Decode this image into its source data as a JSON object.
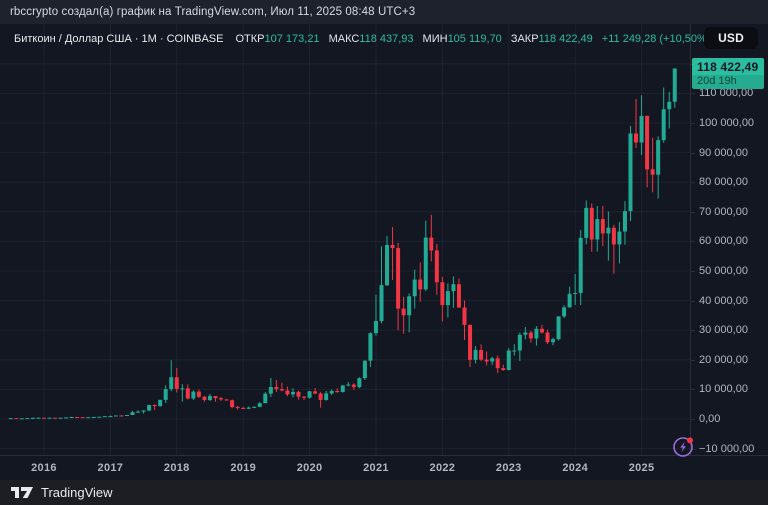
{
  "attribution": "rbccrypto создал(а) график на TradingView.com, Июл 11, 2025 08:48 UTC+3",
  "legend": {
    "title": "Биткоин / Доллар США · 1M · COINBASE",
    "items": [
      {
        "label": "ОТКР",
        "value": "107 173,21"
      },
      {
        "label": "МАКС",
        "value": "118 437,93"
      },
      {
        "label": "МИН",
        "value": "105 119,70"
      },
      {
        "label": "ЗАКР",
        "value": "118 422,49"
      }
    ],
    "change": "+11 249,28 (+10,50%)"
  },
  "currency_button": "USD",
  "price_label": {
    "price": "118 422,49",
    "countdown": "20d 19h",
    "value": 118422.49
  },
  "footer": {
    "brand": "TradingView"
  },
  "colors": {
    "up": "#22ab94",
    "down": "#f23645",
    "background": "#131722",
    "panel": "#1e222d",
    "grid": "rgba(240,243,250,0.055)",
    "label_bg": "#2abda0",
    "accent_text": "#2dbd9e",
    "flash_purple": "#9c6ade",
    "dot_red": "#f23645"
  },
  "axes": {
    "y_ticks": [
      {
        "value": 120000,
        "label": "120 000,00"
      },
      {
        "value": 110000,
        "label": "110 000,00"
      },
      {
        "value": 100000,
        "label": "100 000,00"
      },
      {
        "value": 90000,
        "label": "90 000,00"
      },
      {
        "value": 80000,
        "label": "80 000,00"
      },
      {
        "value": 70000,
        "label": "70 000,00"
      },
      {
        "value": 60000,
        "label": "60 000,00"
      },
      {
        "value": 50000,
        "label": "50 000,00"
      },
      {
        "value": 40000,
        "label": "40 000,00"
      },
      {
        "value": 30000,
        "label": "30 000,00"
      },
      {
        "value": 20000,
        "label": "20 000,00"
      },
      {
        "value": 10000,
        "label": "10 000,00"
      },
      {
        "value": 0,
        "label": "0,00"
      },
      {
        "value": -10000,
        "label": "−10 000,00"
      }
    ],
    "x_ticks": [
      "2016",
      "2017",
      "2018",
      "2019",
      "2020",
      "2021",
      "2022",
      "2023",
      "2024",
      "2025"
    ]
  },
  "chart_data": {
    "type": "candlestick",
    "title": "Биткоин / Доллар США",
    "symbol": "BTC/USD",
    "interval": "1M",
    "exchange": "COINBASE",
    "x_unit": "month",
    "start": "2015-07",
    "ylim": [
      -10000,
      120000
    ],
    "grid": true,
    "last_price": 118422.49,
    "ohlc_legend": [
      "open",
      "high",
      "low",
      "close"
    ],
    "ohlc": [
      [
        260,
        310,
        255,
        284
      ],
      [
        284,
        285,
        198,
        230
      ],
      [
        230,
        246,
        223,
        236
      ],
      [
        236,
        334,
        236,
        314
      ],
      [
        314,
        504,
        295,
        377
      ],
      [
        377,
        467,
        345,
        430
      ],
      [
        430,
        436,
        350,
        368
      ],
      [
        368,
        440,
        365,
        437
      ],
      [
        437,
        440,
        398,
        416
      ],
      [
        416,
        470,
        410,
        448
      ],
      [
        448,
        550,
        438,
        531
      ],
      [
        531,
        780,
        515,
        673
      ],
      [
        673,
        705,
        600,
        624
      ],
      [
        624,
        638,
        465,
        573
      ],
      [
        573,
        630,
        565,
        609
      ],
      [
        609,
        720,
        605,
        700
      ],
      [
        700,
        755,
        670,
        745
      ],
      [
        745,
        982,
        740,
        963
      ],
      [
        963,
        1200,
        750,
        970
      ],
      [
        970,
        1220,
        920,
        1190
      ],
      [
        1190,
        1290,
        890,
        1080
      ],
      [
        1080,
        1350,
        1060,
        1350
      ],
      [
        1350,
        2760,
        1340,
        2300
      ],
      [
        2300,
        2980,
        2120,
        2480
      ],
      [
        2480,
        2920,
        1850,
        2875
      ],
      [
        2875,
        4750,
        2650,
        4735
      ],
      [
        4735,
        4940,
        2970,
        4360
      ],
      [
        4360,
        6500,
        4150,
        6450
      ],
      [
        6450,
        11400,
        5400,
        10100
      ],
      [
        10100,
        19891,
        9380,
        14100
      ],
      [
        14100,
        17234,
        9000,
        10200
      ],
      [
        10200,
        11780,
        5873,
        10350
      ],
      [
        10350,
        11700,
        6600,
        6930
      ],
      [
        6930,
        9760,
        6425,
        9240
      ],
      [
        9240,
        9990,
        7060,
        7500
      ],
      [
        7500,
        7780,
        5780,
        6400
      ],
      [
        6400,
        8500,
        6070,
        7750
      ],
      [
        7750,
        7780,
        5880,
        7030
      ],
      [
        7030,
        7410,
        6100,
        6600
      ],
      [
        6600,
        6830,
        6200,
        6340
      ],
      [
        6340,
        6560,
        3620,
        4040
      ],
      [
        4040,
        4410,
        3150,
        3740
      ],
      [
        3740,
        4110,
        3350,
        3460
      ],
      [
        3460,
        4190,
        3330,
        3850
      ],
      [
        3850,
        4290,
        3670,
        4100
      ],
      [
        4100,
        5640,
        4050,
        5350
      ],
      [
        5350,
        9070,
        5330,
        8560
      ],
      [
        8560,
        13880,
        7430,
        10800
      ],
      [
        10800,
        13200,
        9100,
        10080
      ],
      [
        10080,
        12320,
        9350,
        9630
      ],
      [
        9630,
        10950,
        7700,
        8310
      ],
      [
        8310,
        10350,
        7290,
        9150
      ],
      [
        9150,
        9500,
        6540,
        7570
      ],
      [
        7570,
        7750,
        6430,
        7190
      ],
      [
        7190,
        9570,
        6850,
        9350
      ],
      [
        9350,
        10500,
        8400,
        8600
      ],
      [
        8600,
        9180,
        3850,
        6440
      ],
      [
        6440,
        9460,
        6150,
        8640
      ],
      [
        8640,
        10000,
        8100,
        9450
      ],
      [
        9450,
        10380,
        8830,
        9140
      ],
      [
        9140,
        11440,
        8900,
        11350
      ],
      [
        11350,
        12480,
        11000,
        11650
      ],
      [
        11650,
        12050,
        9820,
        10780
      ],
      [
        10780,
        14100,
        10400,
        13800
      ],
      [
        13800,
        19850,
        13200,
        19700
      ],
      [
        19700,
        29300,
        17600,
        29000
      ],
      [
        29000,
        42000,
        28130,
        33100
      ],
      [
        33100,
        58350,
        32300,
        45200
      ],
      [
        45200,
        61800,
        44950,
        58800
      ],
      [
        58800,
        64900,
        46930,
        57750
      ],
      [
        57750,
        59500,
        30000,
        37300
      ],
      [
        37300,
        41330,
        28800,
        35040
      ],
      [
        35040,
        42450,
        29300,
        41460
      ],
      [
        41460,
        50500,
        37330,
        47110
      ],
      [
        47110,
        52920,
        39600,
        43790
      ],
      [
        43790,
        67000,
        43280,
        61300
      ],
      [
        61300,
        69000,
        53250,
        56950
      ],
      [
        56950,
        59100,
        42000,
        46200
      ],
      [
        46200,
        47990,
        32930,
        38480
      ],
      [
        38480,
        45820,
        34300,
        43190
      ],
      [
        43190,
        48200,
        37550,
        45540
      ],
      [
        45540,
        47450,
        37580,
        37650
      ],
      [
        37650,
        40020,
        26700,
        31790
      ],
      [
        31790,
        31980,
        17600,
        19985
      ],
      [
        19985,
        24670,
        18780,
        23300
      ],
      [
        23300,
        25200,
        19520,
        20050
      ],
      [
        20050,
        22800,
        18130,
        19430
      ],
      [
        19430,
        21090,
        18200,
        20490
      ],
      [
        20490,
        21480,
        15480,
        17170
      ],
      [
        17170,
        18390,
        16260,
        16540
      ],
      [
        16540,
        23960,
        16490,
        23130
      ],
      [
        23130,
        25250,
        21430,
        23140
      ],
      [
        23140,
        29180,
        19550,
        28470
      ],
      [
        28470,
        31050,
        26940,
        29230
      ],
      [
        29230,
        29820,
        25800,
        27220
      ],
      [
        27220,
        31400,
        24800,
        30480
      ],
      [
        30480,
        31800,
        28860,
        29230
      ],
      [
        29230,
        30180,
        25350,
        25940
      ],
      [
        25940,
        27480,
        24900,
        26960
      ],
      [
        26960,
        34700,
        26540,
        34660
      ],
      [
        34660,
        38415,
        34100,
        37710
      ],
      [
        37710,
        44700,
        37615,
        42280
      ],
      [
        42280,
        48970,
        38500,
        42580
      ],
      [
        42580,
        63930,
        38520,
        61200
      ],
      [
        61200,
        73800,
        59005,
        71330
      ],
      [
        71330,
        72800,
        56500,
        60640
      ],
      [
        60640,
        71950,
        56555,
        67540
      ],
      [
        67540,
        71980,
        58400,
        62680
      ],
      [
        62680,
        70080,
        53500,
        64620
      ],
      [
        64620,
        65600,
        49050,
        58970
      ],
      [
        58970,
        66500,
        52550,
        63330
      ],
      [
        63330,
        73620,
        58900,
        70220
      ],
      [
        70220,
        99000,
        66840,
        96450
      ],
      [
        96450,
        108100,
        91530,
        93430
      ],
      [
        93430,
        109350,
        89160,
        102400
      ],
      [
        102400,
        102500,
        78250,
        84350
      ],
      [
        84350,
        95000,
        76600,
        82550
      ],
      [
        82550,
        95500,
        74500,
        94210
      ],
      [
        94210,
        111970,
        93350,
        104640
      ],
      [
        104640,
        110530,
        98200,
        107170
      ],
      [
        107173.21,
        118437.93,
        105119.7,
        118422.49
      ]
    ]
  }
}
